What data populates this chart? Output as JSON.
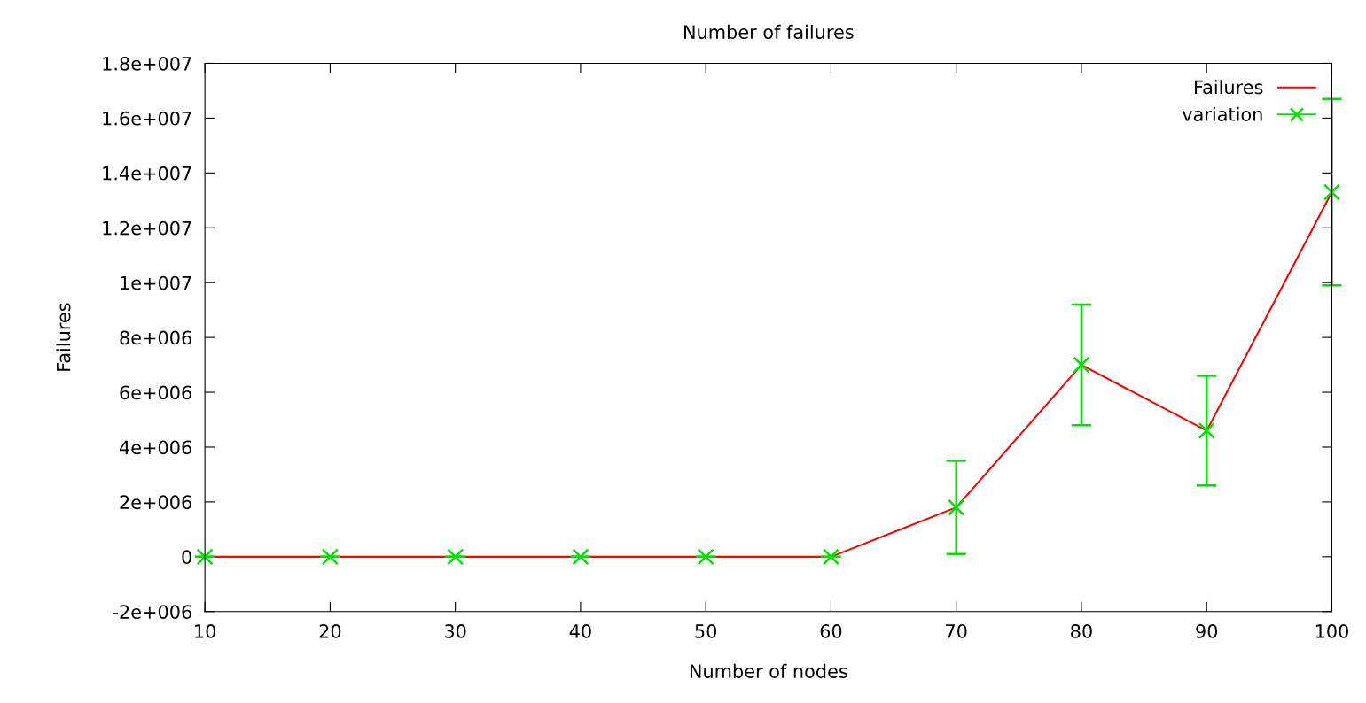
{
  "chart_data": {
    "type": "line",
    "title": "Number of failures",
    "xlabel": "Number of nodes",
    "ylabel": "Failures",
    "x": [
      10,
      20,
      30,
      40,
      50,
      60,
      70,
      80,
      90,
      100
    ],
    "series": [
      {
        "name": "Failures",
        "color": "#ff0000",
        "marker": "none",
        "values": [
          0,
          0,
          0,
          0,
          0,
          0,
          1800000,
          7000000,
          4600000,
          13300000
        ]
      },
      {
        "name": "variation",
        "type": "scatter",
        "color": "#00e000",
        "marker": "cross",
        "values": [
          0,
          0,
          0,
          0,
          0,
          0,
          1800000,
          7000000,
          4600000,
          13300000
        ],
        "errors": [
          0,
          0,
          0,
          0,
          0,
          0,
          1700000,
          2200000,
          2000000,
          3400000
        ]
      }
    ],
    "xlim": [
      10,
      100
    ],
    "xticks": [
      10,
      20,
      30,
      40,
      50,
      60,
      70,
      80,
      90,
      100
    ],
    "ylim": [
      -2000000,
      18000000
    ],
    "yticks": [
      {
        "value": -2000000,
        "label": "-2e+006"
      },
      {
        "value": 0,
        "label": "0"
      },
      {
        "value": 2000000,
        "label": "2e+006"
      },
      {
        "value": 4000000,
        "label": "4e+006"
      },
      {
        "value": 6000000,
        "label": "6e+006"
      },
      {
        "value": 8000000,
        "label": "8e+006"
      },
      {
        "value": 10000000,
        "label": "1e+007"
      },
      {
        "value": 12000000,
        "label": "1.2e+007"
      },
      {
        "value": 14000000,
        "label": "1.4e+007"
      },
      {
        "value": 16000000,
        "label": "1.6e+007"
      },
      {
        "value": 18000000,
        "label": "1.8e+007"
      }
    ],
    "grid": false,
    "legend": "top right"
  }
}
